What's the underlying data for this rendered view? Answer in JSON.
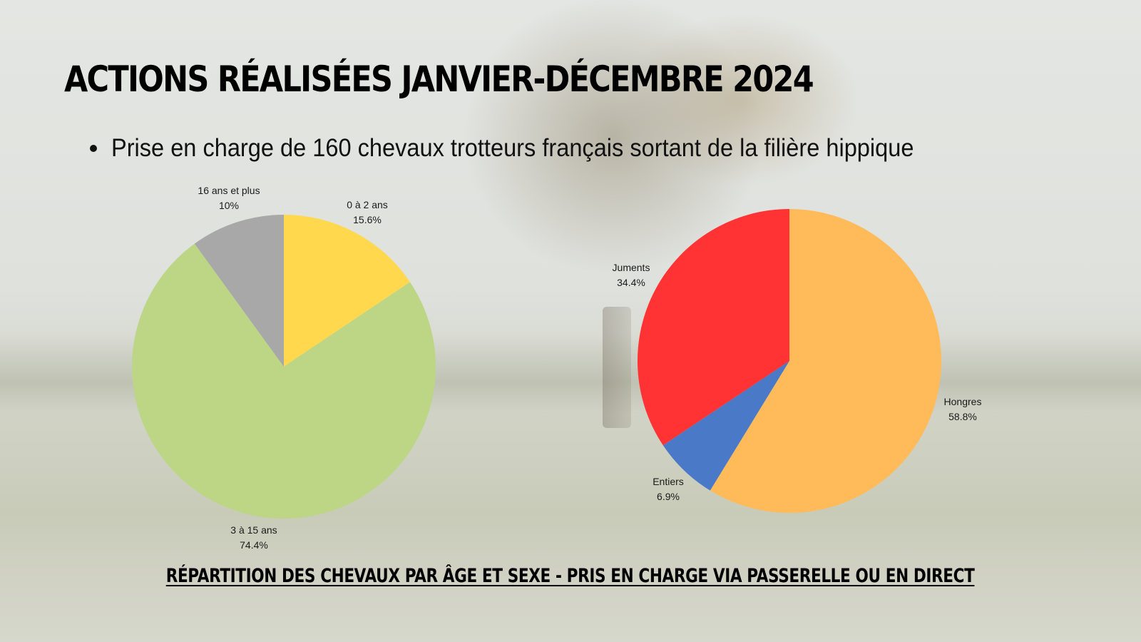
{
  "title": "ACTIONS RÉALISÉES JANVIER-DÉCEMBRE 2024",
  "bullet": "Prise en charge de 160 chevaux trotteurs français sortant de la filière hippique",
  "caption": "RÉPARTITION DES CHEVAUX PAR ÂGE ET SEXE - PRIS EN CHARGE VIA PASSERELLE OU EN DIRECT",
  "chart_data": [
    {
      "type": "pie",
      "categories": [
        "0 à 2 ans",
        "3 à 15 ans",
        "16 ans et plus"
      ],
      "values": [
        15.6,
        74.4,
        10
      ],
      "labels": [
        "15.6%",
        "74.4%",
        "10%"
      ],
      "colors": [
        "#ffd84d",
        "#bcd686",
        "#a8a8a8"
      ]
    },
    {
      "type": "pie",
      "categories": [
        "Hongres",
        "Entiers",
        "Juments"
      ],
      "values": [
        58.8,
        6.9,
        34.4
      ],
      "labels": [
        "58.8%",
        "6.9%",
        "34.4%"
      ],
      "colors": [
        "#ffbb5a",
        "#4a79c8",
        "#ff3333"
      ]
    }
  ]
}
